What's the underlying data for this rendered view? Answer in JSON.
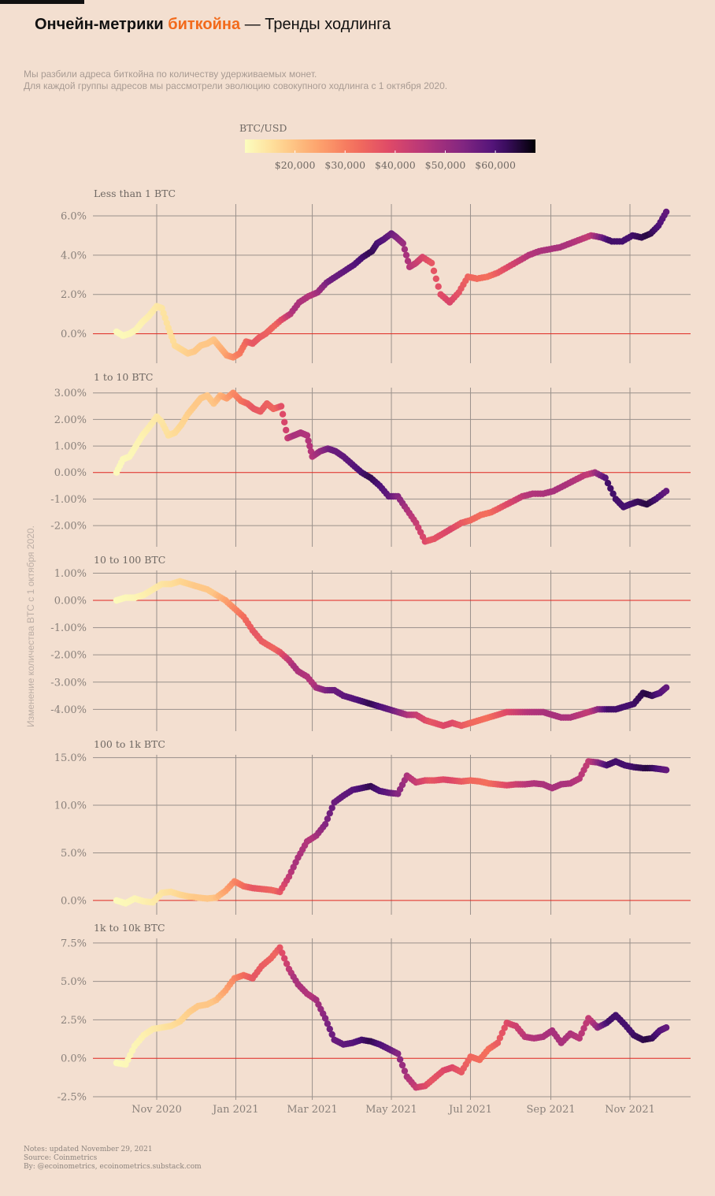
{
  "header": {
    "title_part1": "Ончейн-метрики ",
    "title_highlight": "биткойна",
    "title_part2": " — Тренды ходлинга",
    "subtitle_line1": "Мы разбили адреса биткойна по количеству удерживаемых монет.",
    "subtitle_line2": "Для каждой группы адресов мы рассмотрели эволюцию совокупного ходлинга с 1 октября 2020."
  },
  "notes": {
    "line1": "Notes: updated November 29, 2021",
    "line2": "Source: Coinmetrics",
    "line3": "By: @ecoinometrics, ecoinometrics.substack.com"
  },
  "colors": {
    "background": "#f3dfd0",
    "grid": "#9a918b",
    "zero_line": "#e0261f",
    "highlight": "#f26a1b",
    "palette": "magma-reversed"
  },
  "chart_data": {
    "type": "scatter",
    "y_axis_label": "Изменение количества BTC с 1 октября 2020.",
    "x_tick_labels": [
      "Nov 2020",
      "Jan 2021",
      "Mar 2021",
      "May 2021",
      "Jul 2021",
      "Sep 2021",
      "Nov 2021"
    ],
    "x_tick_dates": [
      "2020-11-01",
      "2021-01-01",
      "2021-03-01",
      "2021-05-01",
      "2021-07-01",
      "2021-09-01",
      "2021-11-01"
    ],
    "x_range": [
      "2020-10-01",
      "2021-11-29"
    ],
    "colorbar": {
      "title": "BTC/USD",
      "range": [
        10000,
        68000
      ],
      "tick_values": [
        20000,
        30000,
        40000,
        50000,
        60000
      ],
      "tick_labels": [
        "$20,000",
        "$30,000",
        "$40,000",
        "$50,000",
        "$60,000"
      ]
    },
    "btc_price": {
      "date": [
        "2020-10-01",
        "2020-10-15",
        "2020-11-01",
        "2020-11-15",
        "2020-12-01",
        "2020-12-15",
        "2021-01-01",
        "2021-01-15",
        "2021-02-01",
        "2021-02-15",
        "2021-03-01",
        "2021-03-15",
        "2021-04-01",
        "2021-04-15",
        "2021-05-01",
        "2021-05-15",
        "2021-06-01",
        "2021-06-15",
        "2021-07-01",
        "2021-07-15",
        "2021-08-01",
        "2021-08-15",
        "2021-09-01",
        "2021-09-15",
        "2021-10-01",
        "2021-10-15",
        "2021-11-01",
        "2021-11-15",
        "2021-11-29"
      ],
      "usd": [
        10600,
        11400,
        13700,
        16000,
        19000,
        19500,
        29000,
        36500,
        33500,
        48000,
        46000,
        56000,
        58800,
        63000,
        57000,
        46000,
        36500,
        40000,
        33500,
        32000,
        40000,
        46000,
        48000,
        47500,
        43500,
        61500,
        61000,
        64000,
        57500
      ]
    },
    "panels": [
      {
        "title": "Less than 1 BTC",
        "y_ticks": [
          0,
          2,
          4,
          6
        ],
        "y_tick_labels": [
          "0.0%",
          "2.0%",
          "4.0%",
          "6.0%"
        ],
        "y_range": [
          -1.5,
          6.6
        ],
        "series": {
          "date": [
            "2020-10-01",
            "2020-10-06",
            "2020-10-11",
            "2020-10-16",
            "2020-10-21",
            "2020-10-26",
            "2020-11-01",
            "2020-11-05",
            "2020-11-10",
            "2020-11-15",
            "2020-11-20",
            "2020-11-25",
            "2020-11-30",
            "2020-12-05",
            "2020-12-10",
            "2020-12-15",
            "2020-12-20",
            "2020-12-25",
            "2020-12-30",
            "2021-01-04",
            "2021-01-09",
            "2021-01-14",
            "2021-01-19",
            "2021-01-24",
            "2021-01-29",
            "2021-02-05",
            "2021-02-12",
            "2021-02-19",
            "2021-02-26",
            "2021-03-05",
            "2021-03-12",
            "2021-03-19",
            "2021-03-26",
            "2021-04-02",
            "2021-04-09",
            "2021-04-16",
            "2021-04-20",
            "2021-04-25",
            "2021-05-01",
            "2021-05-05",
            "2021-05-10",
            "2021-05-15",
            "2021-05-20",
            "2021-05-25",
            "2021-06-01",
            "2021-06-08",
            "2021-06-15",
            "2021-06-22",
            "2021-06-29",
            "2021-07-06",
            "2021-07-14",
            "2021-07-22",
            "2021-07-30",
            "2021-08-07",
            "2021-08-15",
            "2021-08-23",
            "2021-08-31",
            "2021-09-08",
            "2021-09-16",
            "2021-09-24",
            "2021-10-02",
            "2021-10-10",
            "2021-10-18",
            "2021-10-26",
            "2021-11-03",
            "2021-11-10",
            "2021-11-17",
            "2021-11-23",
            "2021-11-29"
          ],
          "value": [
            0.1,
            -0.1,
            0.0,
            0.2,
            0.6,
            0.9,
            1.4,
            1.3,
            0.3,
            -0.6,
            -0.8,
            -1.0,
            -0.9,
            -0.6,
            -0.5,
            -0.3,
            -0.7,
            -1.1,
            -1.2,
            -1.0,
            -0.4,
            -0.5,
            -0.2,
            0.0,
            0.3,
            0.7,
            1.0,
            1.6,
            1.9,
            2.1,
            2.6,
            2.9,
            3.2,
            3.5,
            3.9,
            4.2,
            4.6,
            4.8,
            5.1,
            4.9,
            4.6,
            3.4,
            3.6,
            3.9,
            3.6,
            2.0,
            1.6,
            2.1,
            2.9,
            2.8,
            2.9,
            3.1,
            3.4,
            3.7,
            4.0,
            4.2,
            4.3,
            4.4,
            4.6,
            4.8,
            5.0,
            4.9,
            4.7,
            4.7,
            5.0,
            4.9,
            5.1,
            5.5,
            6.2
          ]
        }
      },
      {
        "title": "1 to 10 BTC",
        "y_ticks": [
          -2,
          -1,
          0,
          1,
          2,
          3
        ],
        "y_tick_labels": [
          "-2.00%",
          "-1.00%",
          "0.00%",
          "1.00%",
          "2.00%",
          "3.00%"
        ],
        "y_range": [
          -2.8,
          3.2
        ],
        "series": {
          "date": [
            "2020-10-01",
            "2020-10-06",
            "2020-10-11",
            "2020-10-16",
            "2020-10-21",
            "2020-10-26",
            "2020-11-01",
            "2020-11-05",
            "2020-11-10",
            "2020-11-15",
            "2020-11-20",
            "2020-11-25",
            "2020-11-30",
            "2020-12-05",
            "2020-12-10",
            "2020-12-15",
            "2020-12-20",
            "2020-12-25",
            "2020-12-30",
            "2021-01-05",
            "2021-01-10",
            "2021-01-15",
            "2021-01-20",
            "2021-01-25",
            "2021-01-30",
            "2021-02-05",
            "2021-02-10",
            "2021-02-15",
            "2021-02-20",
            "2021-02-25",
            "2021-03-01",
            "2021-03-07",
            "2021-03-13",
            "2021-03-19",
            "2021-03-25",
            "2021-04-01",
            "2021-04-08",
            "2021-04-15",
            "2021-04-22",
            "2021-04-29",
            "2021-05-06",
            "2021-05-13",
            "2021-05-20",
            "2021-05-27",
            "2021-06-03",
            "2021-06-10",
            "2021-06-17",
            "2021-06-24",
            "2021-07-01",
            "2021-07-09",
            "2021-07-17",
            "2021-07-25",
            "2021-08-02",
            "2021-08-10",
            "2021-08-18",
            "2021-08-26",
            "2021-09-03",
            "2021-09-11",
            "2021-09-19",
            "2021-09-27",
            "2021-10-05",
            "2021-10-13",
            "2021-10-21",
            "2021-10-27",
            "2021-11-01",
            "2021-11-07",
            "2021-11-14",
            "2021-11-21",
            "2021-11-29"
          ],
          "value": [
            0.0,
            0.5,
            0.6,
            1.0,
            1.4,
            1.7,
            2.1,
            1.9,
            1.4,
            1.5,
            1.8,
            2.2,
            2.5,
            2.8,
            2.9,
            2.6,
            2.9,
            2.8,
            3.0,
            2.7,
            2.6,
            2.4,
            2.3,
            2.6,
            2.4,
            2.5,
            1.3,
            1.4,
            1.5,
            1.4,
            0.6,
            0.8,
            0.9,
            0.8,
            0.6,
            0.3,
            0.0,
            -0.2,
            -0.5,
            -0.9,
            -0.9,
            -1.4,
            -1.9,
            -2.6,
            -2.5,
            -2.3,
            -2.1,
            -1.9,
            -1.8,
            -1.6,
            -1.5,
            -1.3,
            -1.1,
            -0.9,
            -0.8,
            -0.8,
            -0.7,
            -0.5,
            -0.3,
            -0.1,
            0.0,
            -0.2,
            -1.0,
            -1.3,
            -1.2,
            -1.1,
            -1.2,
            -1.0,
            -0.7
          ]
        }
      },
      {
        "title": "10 to 100 BTC",
        "y_ticks": [
          -4,
          -3,
          -2,
          -1,
          0,
          1
        ],
        "y_tick_labels": [
          "-4.00%",
          "-3.00%",
          "-2.00%",
          "-1.00%",
          "0.00%",
          "1.00%"
        ],
        "y_range": [
          -4.8,
          1.1
        ],
        "series": {
          "date": [
            "2020-10-01",
            "2020-10-08",
            "2020-10-15",
            "2020-10-22",
            "2020-10-29",
            "2020-11-05",
            "2020-11-12",
            "2020-11-19",
            "2020-11-26",
            "2020-12-03",
            "2020-12-10",
            "2020-12-17",
            "2020-12-24",
            "2020-12-31",
            "2021-01-07",
            "2021-01-14",
            "2021-01-21",
            "2021-01-28",
            "2021-02-04",
            "2021-02-11",
            "2021-02-18",
            "2021-02-25",
            "2021-03-04",
            "2021-03-11",
            "2021-03-18",
            "2021-03-25",
            "2021-04-01",
            "2021-04-08",
            "2021-04-15",
            "2021-04-22",
            "2021-04-29",
            "2021-05-06",
            "2021-05-13",
            "2021-05-20",
            "2021-05-27",
            "2021-06-03",
            "2021-06-10",
            "2021-06-17",
            "2021-06-24",
            "2021-07-01",
            "2021-07-08",
            "2021-07-15",
            "2021-07-22",
            "2021-07-29",
            "2021-08-05",
            "2021-08-12",
            "2021-08-19",
            "2021-08-26",
            "2021-09-02",
            "2021-09-09",
            "2021-09-16",
            "2021-09-23",
            "2021-09-30",
            "2021-10-07",
            "2021-10-14",
            "2021-10-21",
            "2021-10-28",
            "2021-11-04",
            "2021-11-11",
            "2021-11-18",
            "2021-11-24",
            "2021-11-29"
          ],
          "value": [
            0.0,
            0.1,
            0.1,
            0.2,
            0.4,
            0.6,
            0.6,
            0.7,
            0.6,
            0.5,
            0.4,
            0.2,
            0.0,
            -0.3,
            -0.6,
            -1.1,
            -1.5,
            -1.7,
            -1.9,
            -2.2,
            -2.6,
            -2.8,
            -3.2,
            -3.3,
            -3.3,
            -3.5,
            -3.6,
            -3.7,
            -3.8,
            -3.9,
            -4.0,
            -4.1,
            -4.2,
            -4.2,
            -4.4,
            -4.5,
            -4.6,
            -4.5,
            -4.6,
            -4.5,
            -4.4,
            -4.3,
            -4.2,
            -4.1,
            -4.1,
            -4.1,
            -4.1,
            -4.1,
            -4.2,
            -4.3,
            -4.3,
            -4.2,
            -4.1,
            -4.0,
            -4.0,
            -4.0,
            -3.9,
            -3.8,
            -3.4,
            -3.5,
            -3.4,
            -3.2
          ]
        }
      },
      {
        "title": "100 to 1k BTC",
        "y_ticks": [
          0,
          5,
          10,
          15
        ],
        "y_tick_labels": [
          "0.0%",
          "5.0%",
          "10.0%",
          "15.0%"
        ],
        "y_range": [
          -1.5,
          15.3
        ],
        "series": {
          "date": [
            "2020-10-01",
            "2020-10-08",
            "2020-10-15",
            "2020-10-22",
            "2020-10-29",
            "2020-11-05",
            "2020-11-12",
            "2020-11-19",
            "2020-11-26",
            "2020-12-03",
            "2020-12-10",
            "2020-12-17",
            "2020-12-24",
            "2020-12-31",
            "2021-01-07",
            "2021-01-14",
            "2021-01-21",
            "2021-01-28",
            "2021-02-04",
            "2021-02-11",
            "2021-02-18",
            "2021-02-25",
            "2021-03-04",
            "2021-03-11",
            "2021-03-18",
            "2021-03-25",
            "2021-04-01",
            "2021-04-08",
            "2021-04-15",
            "2021-04-22",
            "2021-04-29",
            "2021-05-06",
            "2021-05-13",
            "2021-05-20",
            "2021-05-27",
            "2021-06-03",
            "2021-06-10",
            "2021-06-17",
            "2021-06-24",
            "2021-07-01",
            "2021-07-08",
            "2021-07-15",
            "2021-07-22",
            "2021-07-29",
            "2021-08-05",
            "2021-08-12",
            "2021-08-19",
            "2021-08-26",
            "2021-09-02",
            "2021-09-09",
            "2021-09-16",
            "2021-09-23",
            "2021-09-30",
            "2021-10-07",
            "2021-10-14",
            "2021-10-21",
            "2021-10-28",
            "2021-11-04",
            "2021-11-11",
            "2021-11-18",
            "2021-11-24",
            "2021-11-29"
          ],
          "value": [
            0.0,
            -0.3,
            0.2,
            -0.1,
            -0.2,
            0.8,
            0.9,
            0.6,
            0.4,
            0.3,
            0.2,
            0.3,
            1.0,
            2.0,
            1.5,
            1.3,
            1.2,
            1.1,
            0.9,
            2.5,
            4.5,
            6.2,
            6.8,
            8.0,
            10.3,
            11.0,
            11.6,
            11.8,
            12.0,
            11.5,
            11.3,
            11.2,
            13.1,
            12.4,
            12.6,
            12.6,
            12.7,
            12.6,
            12.5,
            12.6,
            12.5,
            12.3,
            12.2,
            12.1,
            12.2,
            12.2,
            12.3,
            12.2,
            11.8,
            12.2,
            12.3,
            12.8,
            14.6,
            14.5,
            14.2,
            14.6,
            14.2,
            14.0,
            13.9,
            13.9,
            13.8,
            13.7
          ]
        }
      },
      {
        "title": "1k to 10k BTC",
        "y_ticks": [
          -2.5,
          0,
          2.5,
          5,
          7.5
        ],
        "y_tick_labels": [
          "-2.5%",
          "0.0%",
          "2.5%",
          "5.0%",
          "7.5%"
        ],
        "y_range": [
          -2.5,
          7.8
        ],
        "series": {
          "date": [
            "2020-10-01",
            "2020-10-08",
            "2020-10-15",
            "2020-10-22",
            "2020-10-29",
            "2020-11-05",
            "2020-11-12",
            "2020-11-19",
            "2020-11-26",
            "2020-12-03",
            "2020-12-10",
            "2020-12-17",
            "2020-12-24",
            "2020-12-31",
            "2021-01-07",
            "2021-01-14",
            "2021-01-21",
            "2021-01-28",
            "2021-02-04",
            "2021-02-11",
            "2021-02-18",
            "2021-02-25",
            "2021-03-04",
            "2021-03-11",
            "2021-03-18",
            "2021-03-25",
            "2021-04-01",
            "2021-04-08",
            "2021-04-15",
            "2021-04-22",
            "2021-04-29",
            "2021-05-06",
            "2021-05-13",
            "2021-05-20",
            "2021-05-27",
            "2021-06-03",
            "2021-06-10",
            "2021-06-17",
            "2021-06-24",
            "2021-07-01",
            "2021-07-08",
            "2021-07-15",
            "2021-07-22",
            "2021-07-29",
            "2021-08-05",
            "2021-08-12",
            "2021-08-19",
            "2021-08-26",
            "2021-09-02",
            "2021-09-09",
            "2021-09-16",
            "2021-09-23",
            "2021-09-30",
            "2021-10-07",
            "2021-10-14",
            "2021-10-21",
            "2021-10-28",
            "2021-11-04",
            "2021-11-11",
            "2021-11-18",
            "2021-11-24",
            "2021-11-29"
          ],
          "value": [
            -0.3,
            -0.4,
            0.8,
            1.5,
            1.9,
            2.0,
            2.1,
            2.4,
            3.0,
            3.4,
            3.5,
            3.8,
            4.4,
            5.2,
            5.4,
            5.2,
            6.0,
            6.5,
            7.2,
            5.8,
            4.8,
            4.2,
            3.8,
            2.6,
            1.2,
            0.9,
            1.0,
            1.2,
            1.1,
            0.9,
            0.6,
            0.3,
            -1.2,
            -1.9,
            -1.8,
            -1.3,
            -0.8,
            -0.6,
            -0.9,
            0.1,
            -0.1,
            0.6,
            1.0,
            2.3,
            2.1,
            1.4,
            1.3,
            1.4,
            1.8,
            1.0,
            1.6,
            1.3,
            2.6,
            2.0,
            2.3,
            2.8,
            2.2,
            1.5,
            1.2,
            1.3,
            1.8,
            2.0
          ]
        }
      }
    ]
  }
}
